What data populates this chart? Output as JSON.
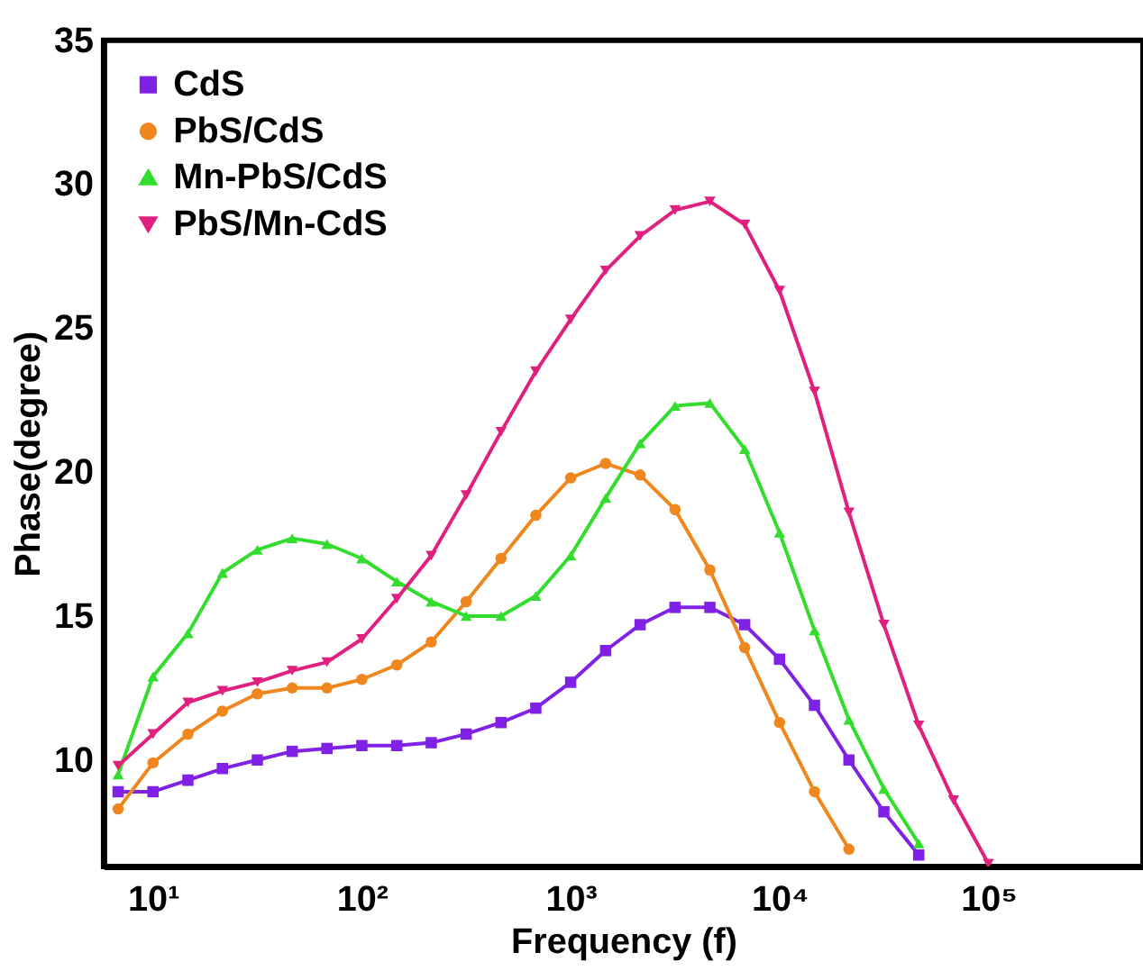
{
  "chart_data": {
    "type": "line",
    "xlabel": "Frequency (f)",
    "ylabel": "Phase(degree)",
    "log": "x",
    "grid": false,
    "legend": "top left",
    "xlim": [
      5.8,
      550000
    ],
    "ylim": [
      6.3,
      35
    ],
    "xticks": [
      {
        "value": 10,
        "label": "10¹"
      },
      {
        "value": 100,
        "label": "10²"
      },
      {
        "value": 1000,
        "label": "10³"
      },
      {
        "value": 10000,
        "label": "10⁴"
      },
      {
        "value": 100000,
        "label": "10⁵"
      }
    ],
    "yticks": [
      10,
      15,
      20,
      25,
      30,
      35
    ],
    "series": [
      {
        "name": "CdS",
        "color": "#7f22e6",
        "marker": "square",
        "x": [
          6.81,
          10,
          14.7,
          21.5,
          31.6,
          46.4,
          68.1,
          100,
          147,
          215,
          316,
          464,
          681,
          1000,
          1470,
          2150,
          3160,
          4640,
          6810,
          10000,
          14700,
          21500,
          31600,
          46400
        ],
        "values": [
          8.9,
          8.9,
          9.3,
          9.7,
          10.0,
          10.3,
          10.4,
          10.5,
          10.5,
          10.6,
          10.9,
          11.3,
          11.8,
          12.7,
          13.8,
          14.7,
          15.3,
          15.3,
          14.7,
          13.5,
          11.9,
          10.0,
          8.2,
          6.7
        ]
      },
      {
        "name": "PbS/CdS",
        "color": "#f0871e",
        "marker": "circle",
        "x": [
          6.81,
          10,
          14.7,
          21.5,
          31.6,
          46.4,
          68.1,
          100,
          147,
          215,
          316,
          464,
          681,
          1000,
          1470,
          2150,
          3160,
          4640,
          6810,
          10000,
          14700,
          21500
        ],
        "values": [
          8.3,
          9.9,
          10.9,
          11.7,
          12.3,
          12.5,
          12.5,
          12.8,
          13.3,
          14.1,
          15.5,
          17.0,
          18.5,
          19.8,
          20.3,
          19.9,
          18.7,
          16.6,
          13.9,
          11.3,
          8.9,
          6.9
        ]
      },
      {
        "name": "Mn-PbS/CdS",
        "color": "#33dd2e",
        "marker": "triangle",
        "x": [
          6.81,
          10,
          14.7,
          21.5,
          31.6,
          46.4,
          68.1,
          100,
          147,
          215,
          316,
          464,
          681,
          1000,
          1470,
          2150,
          3160,
          4640,
          6810,
          10000,
          14700,
          21500,
          31600,
          46400
        ],
        "values": [
          9.5,
          12.9,
          14.4,
          16.5,
          17.3,
          17.7,
          17.5,
          17.0,
          16.2,
          15.5,
          15.0,
          15.0,
          15.7,
          17.1,
          19.1,
          21.0,
          22.3,
          22.4,
          20.8,
          17.9,
          14.5,
          11.4,
          9.0,
          7.1
        ]
      },
      {
        "name": "PbS/Mn-CdS",
        "color": "#e0207f",
        "marker": "triangle-down",
        "x": [
          6.81,
          10,
          14.7,
          21.5,
          31.6,
          46.4,
          68.1,
          100,
          147,
          215,
          316,
          464,
          681,
          1000,
          1470,
          2150,
          3160,
          4640,
          6810,
          10000,
          14700,
          21500,
          31600,
          46400,
          68100,
          100000
        ],
        "values": [
          9.8,
          10.9,
          12.0,
          12.4,
          12.7,
          13.1,
          13.4,
          14.2,
          15.6,
          17.1,
          19.2,
          21.4,
          23.5,
          25.3,
          27.0,
          28.2,
          29.1,
          29.4,
          28.6,
          26.3,
          22.8,
          18.6,
          14.7,
          11.2,
          8.6,
          6.4
        ]
      }
    ]
  }
}
